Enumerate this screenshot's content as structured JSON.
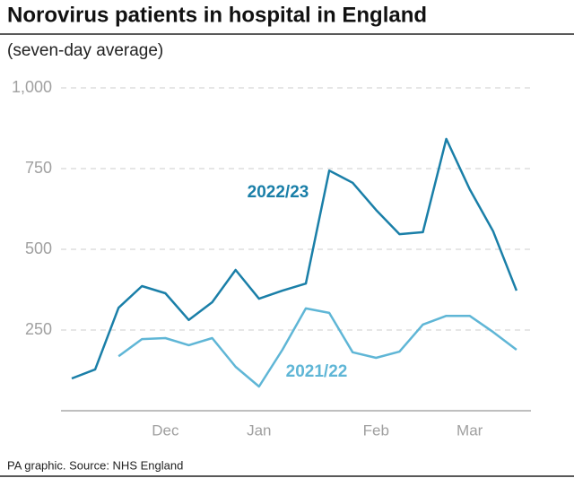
{
  "chart_data": {
    "type": "line",
    "title": "Norovirus patients in hospital in England",
    "subtitle": "(seven-day average)",
    "source": "PA graphic. Source: NHS England",
    "categories": [
      null,
      null,
      null,
      null,
      "Dec",
      null,
      null,
      null,
      "Jan",
      null,
      null,
      null,
      null,
      "Feb",
      null,
      null,
      null,
      "Mar",
      null,
      null
    ],
    "series": [
      {
        "name": "2022/23",
        "color": "#1a7fa8",
        "values": [
          100,
          128,
          319,
          386,
          364,
          281,
          336,
          436,
          347,
          372,
          394,
          744,
          706,
          622,
          547,
          553,
          842,
          686,
          556,
          372
        ]
      },
      {
        "name": "2021/22",
        "color": "#5fb6d6",
        "values": [
          null,
          null,
          169,
          222,
          225,
          203,
          225,
          136,
          75,
          189,
          317,
          303,
          181,
          164,
          183,
          267,
          294,
          294,
          244,
          189
        ]
      }
    ],
    "ylim": [
      0,
      1000
    ],
    "yticks": [
      250,
      500,
      750,
      {
        "value": 1000,
        "label": "1,000"
      }
    ],
    "grid": true
  }
}
